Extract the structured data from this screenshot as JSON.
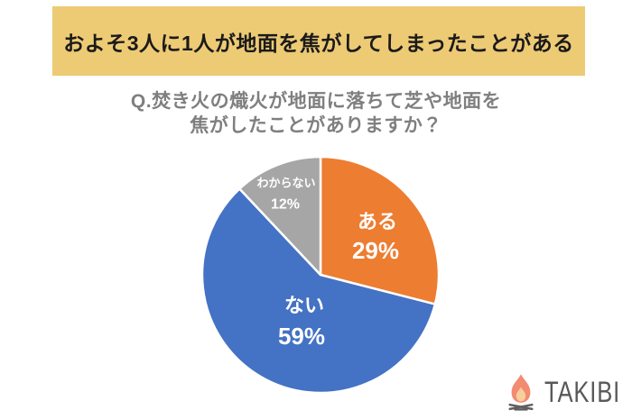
{
  "page": {
    "background": "#FFFFFF"
  },
  "banner": {
    "text": "およそ3人に1人が地面を焦がしてしまったことがある",
    "background": "#EDCA74",
    "text_color": "#1A1A1A"
  },
  "question": {
    "line1": "Q.焚き火の熾火が地面に落ちて芝や地面を",
    "line2": "焦がしたことがありますか？",
    "color": "#7F7F7F"
  },
  "chart_data": {
    "type": "pie",
    "title": "Q.焚き火の熾火が地面に落ちて芝や地面を焦がしたことがありますか？",
    "headline": "およそ3人に1人が地面を焦がしてしまったことがある",
    "unit": "%",
    "direction": "clockwise",
    "start_angle_deg": 0,
    "slices": [
      {
        "label": "ある",
        "value": 29,
        "color": "#ED7D31"
      },
      {
        "label": "ない",
        "value": 59,
        "color": "#4472C4"
      },
      {
        "label": "わからない",
        "value": 12,
        "color": "#A6A6A6"
      }
    ],
    "separator_color": "#FFFFFF",
    "label_color": "#FFFFFF",
    "legend": "none",
    "layout": {
      "center": [
        141,
        142
      ],
      "radius": 131,
      "labels": [
        {
          "name_dx": 63,
          "name_dy": -59,
          "name_size": 22,
          "pct_dx": 61,
          "pct_dy": -27,
          "pct_size": 26
        },
        {
          "name_dx": -18,
          "name_dy": 34,
          "name_size": 22,
          "pct_dx": -21,
          "pct_dy": 68,
          "pct_size": 26
        },
        {
          "name_dx": -38,
          "name_dy": -102,
          "name_size": 13,
          "pct_dx": -39,
          "pct_dy": -79,
          "pct_size": 16
        }
      ]
    }
  },
  "logo": {
    "text": "TAKIBI",
    "color": "#595959",
    "flame_outer": "#F28B72",
    "flame_inner": "#F8CE9B",
    "logs_color": "#5F5F5F"
  }
}
